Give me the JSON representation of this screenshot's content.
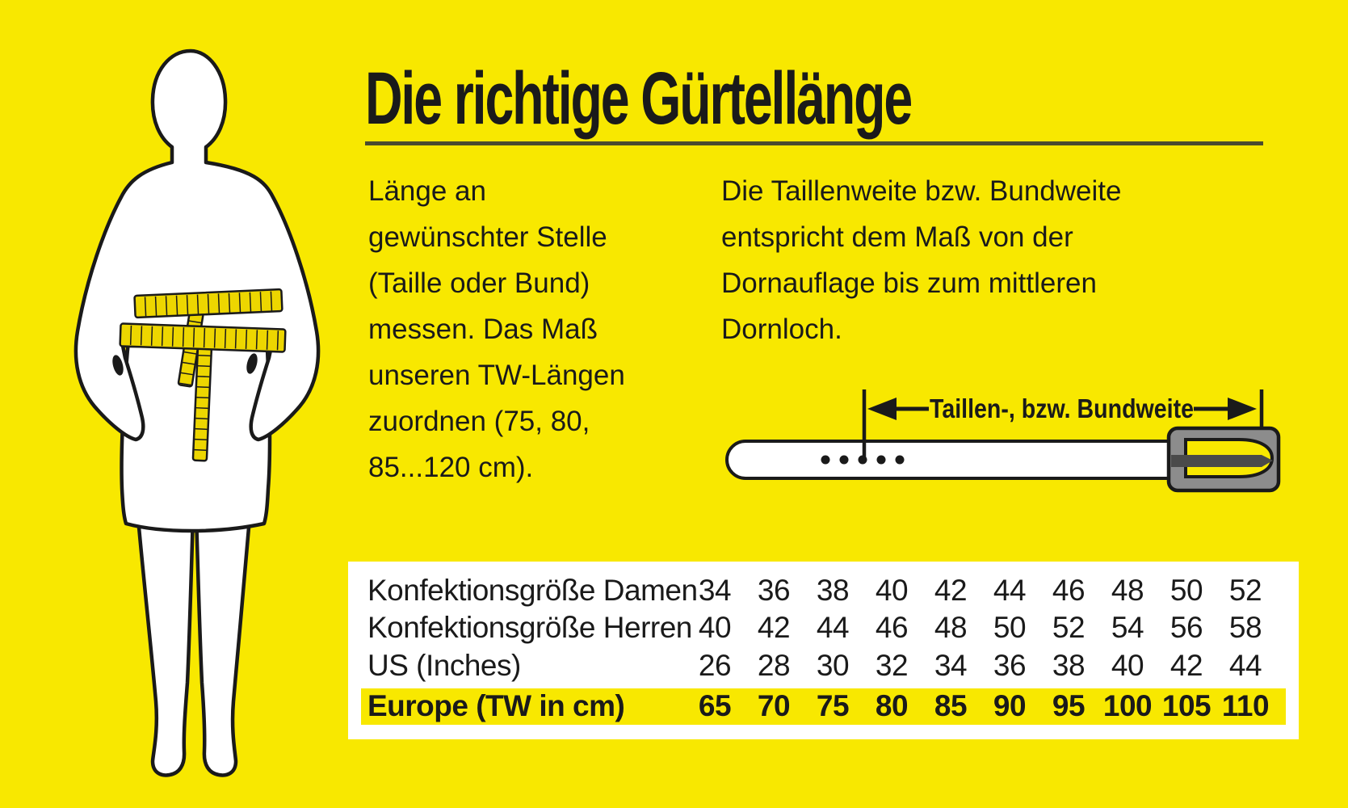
{
  "title": "Die richtige Gürtellänge",
  "intro_left": {
    "lines": [
      "Länge an",
      "gewünschter Stelle",
      "(Taille oder Bund)",
      "messen. Das Maß",
      "unseren TW-Längen",
      "zuordnen (75, 80,",
      "85...120 cm)."
    ]
  },
  "intro_right": {
    "lines": [
      "Die Taillenweite bzw. Bundweite",
      "entspricht dem Maß von der",
      "Dornauflage bis zum mittleren",
      "Dornloch."
    ]
  },
  "belt_diagram": {
    "label": "Taillen-, bzw. Bundweite"
  },
  "size_table": {
    "rows": [
      {
        "label": "Konfektionsgröße Damen",
        "values": [
          34,
          36,
          38,
          40,
          42,
          44,
          46,
          48,
          50,
          52
        ],
        "highlight": false
      },
      {
        "label": "Konfektionsgröße Herren",
        "values": [
          40,
          42,
          44,
          46,
          48,
          50,
          52,
          54,
          56,
          58
        ],
        "highlight": false
      },
      {
        "label": "US (Inches)",
        "values": [
          26,
          28,
          30,
          32,
          34,
          36,
          38,
          40,
          42,
          44
        ],
        "highlight": false
      },
      {
        "label": "Europe (TW in cm)",
        "values": [
          65,
          70,
          75,
          80,
          85,
          90,
          95,
          100,
          105,
          110
        ],
        "highlight": true
      }
    ]
  },
  "colors": {
    "background": "#F8E800",
    "text": "#1A1A1A",
    "underline": "#4B4B2F",
    "table_bg": "#FFFFFF",
    "highlight_row": "#F8E800",
    "buckle_gray": "#8C8C8C",
    "prong_gray": "#4A4A4A",
    "tape_yellow": "#EDD600",
    "silhouette": "#FFFFFF"
  }
}
